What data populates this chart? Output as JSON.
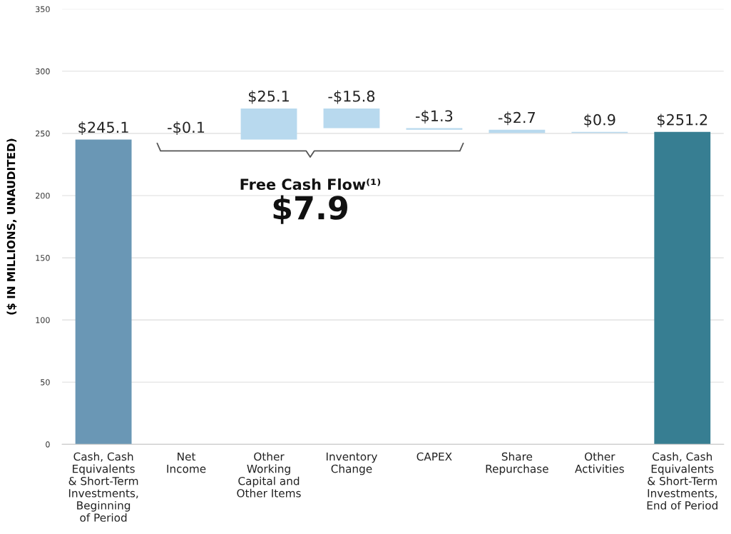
{
  "chart_data": {
    "type": "bar",
    "ylabel": "($ IN MILLIONS, UNAUDITED)",
    "categories": [
      "Cash, Cash\nEquivalents\n& Short-Term\nInvestments,\nBeginning\nof Period",
      "Net\nIncome",
      "Other\nWorking\nCapital and\nOther Items",
      "Inventory\nChange",
      "CAPEX",
      "Share\nRepurchase",
      "Other\nActivities",
      "Cash, Cash\nEquivalents\n& Short-Term\nInvestments,\nEnd of Period"
    ],
    "values": [
      245.1,
      -0.1,
      25.1,
      -15.8,
      -1.3,
      -2.7,
      0.9,
      251.2
    ],
    "base": [
      0,
      245.1,
      245.0,
      270.1,
      254.3,
      253.0,
      250.3,
      0
    ],
    "colors": [
      "#6a97b5",
      "#b8d9ee",
      "#b8d9ee",
      "#b8d9ee",
      "#b8d9ee",
      "#b8d9ee",
      "#b8d9ee",
      "#377e92"
    ],
    "value_labels": [
      "$245.1",
      "-$0.1",
      "$25.1",
      "-$15.8",
      "-$1.3",
      "-$2.7",
      "$0.9",
      "$251.2"
    ],
    "annotations": [
      "Free Cash Flow⁽¹⁾",
      "$7.9"
    ],
    "ylim": [
      0,
      350
    ],
    "yticks": [
      0,
      50,
      100,
      150,
      200,
      250,
      300,
      350
    ],
    "grid": "y",
    "legend": false
  }
}
